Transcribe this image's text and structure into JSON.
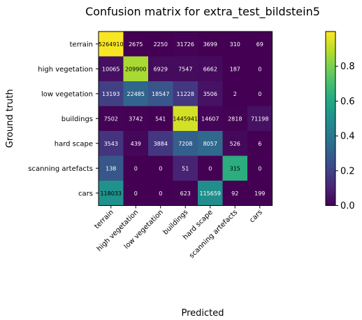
{
  "chart_data": {
    "type": "heatmap",
    "title": "Confusion matrix for extra_test_bildstein5",
    "xlabel": "Predicted",
    "ylabel": "Ground truth",
    "row_labels": [
      "terrain",
      "high vegetation",
      "low vegetation",
      "buildings",
      "hard scape",
      "scanning artefacts",
      "cars"
    ],
    "col_labels": [
      "terrain",
      "high vegetation",
      "low vegetation",
      "buildings",
      "hard scape",
      "scanning artefacts",
      "cars"
    ],
    "matrix": [
      [
        5264910,
        2675,
        2250,
        31726,
        3699,
        310,
        69
      ],
      [
        10065,
        209900,
        6929,
        7547,
        6662,
        187,
        0
      ],
      [
        13193,
        22485,
        18547,
        11228,
        3506,
        2,
        0
      ],
      [
        7502,
        3742,
        541,
        1445941,
        14607,
        2818,
        71198
      ],
      [
        3543,
        439,
        3884,
        7208,
        8057,
        526,
        6
      ],
      [
        138,
        0,
        0,
        51,
        0,
        315,
        0
      ],
      [
        118033,
        0,
        0,
        623,
        115659,
        92,
        199
      ]
    ],
    "color_scale": "viridis",
    "normalization": "row",
    "colorbar": {
      "range": [
        0.0,
        1.0
      ],
      "ticks": [
        "0.0",
        "0.2",
        "0.4",
        "0.6",
        "0.8"
      ],
      "tick_values": [
        0.0,
        0.2,
        0.4,
        0.6,
        0.8
      ]
    }
  }
}
